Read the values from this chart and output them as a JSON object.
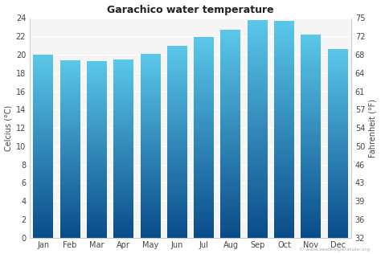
{
  "title": "Garachico water temperature",
  "months": [
    "Jan",
    "Feb",
    "Mar",
    "Apr",
    "May",
    "Jun",
    "Jul",
    "Aug",
    "Sep",
    "Oct",
    "Nov",
    "Dec"
  ],
  "celsius_values": [
    20.0,
    19.4,
    19.3,
    19.5,
    20.1,
    21.0,
    21.9,
    22.7,
    23.8,
    23.7,
    22.2,
    20.6
  ],
  "ylim_celsius": [
    0,
    24
  ],
  "yticks_celsius": [
    0,
    2,
    4,
    6,
    8,
    10,
    12,
    14,
    16,
    18,
    20,
    22,
    24
  ],
  "yticks_fahrenheit": [
    32,
    36,
    39,
    43,
    46,
    50,
    54,
    57,
    61,
    64,
    68,
    72,
    75
  ],
  "ylabel_left": "Celcius (°C)",
  "ylabel_right": "Fahrenheit (°F)",
  "bar_color_top": "#5bc8ea",
  "bar_color_bottom": "#0a4c8a",
  "background_color": "#ffffff",
  "plot_bg_color": "#f5f5f5",
  "plot_top_bg": "#e8e8e8",
  "watermark": "© www.seatemperature.org",
  "title_fontsize": 9,
  "axis_fontsize": 7,
  "tick_fontsize": 7,
  "bar_width": 0.75
}
